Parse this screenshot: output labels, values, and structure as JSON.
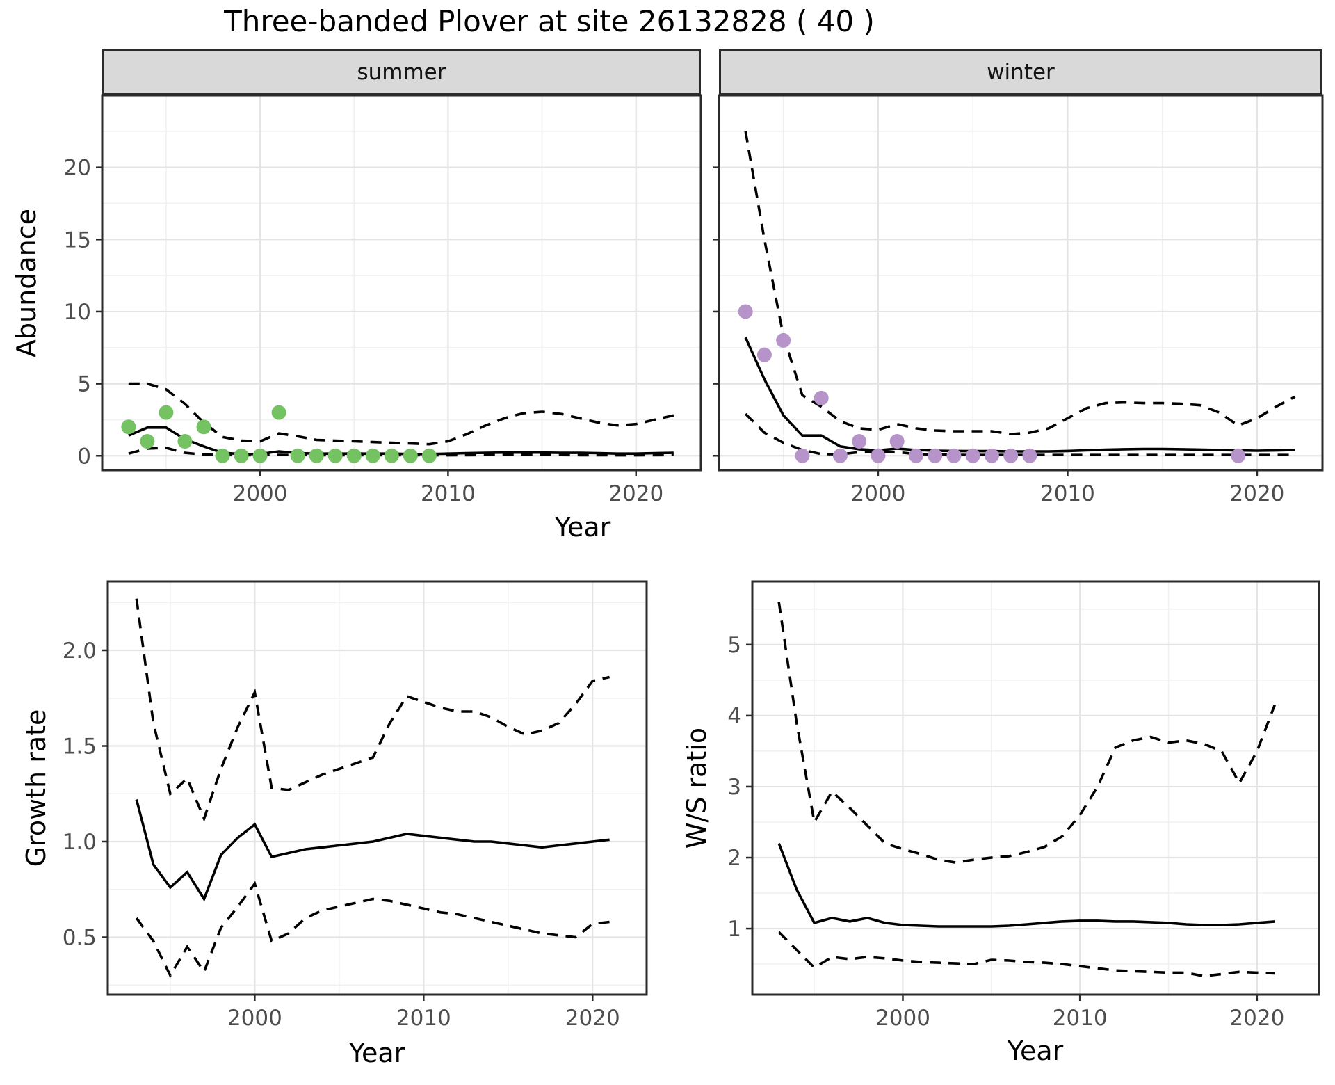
{
  "title": "Three-banded Plover at site 26132828 ( 40 )",
  "style": {
    "summer_point_color": "#74c262",
    "winter_point_color": "#b694ca",
    "line_color": "#000000",
    "grid_major_color": "#e4e4e4",
    "grid_minor_color": "#f0f0f0",
    "panel_border_color": "#2b2b2b",
    "strip_fill": "#d9d9d9",
    "tick_label_color": "#4d4d4d"
  },
  "chart_data": [
    {
      "type": "scatter+line",
      "facet_label": "summer",
      "xlabel": "Year",
      "ylabel": "Abundance",
      "x_ticks": [
        2000,
        2010,
        2020
      ],
      "x_tick_labels": [
        "2000",
        "2010",
        "2020"
      ],
      "x_minor_ticks": [
        1995,
        2005,
        2015
      ],
      "y_ticks": [
        0,
        5,
        10,
        15,
        20
      ],
      "y_tick_labels": [
        "0",
        "5",
        "10",
        "15",
        "20"
      ],
      "y_minor_ticks": [
        2.5,
        7.5,
        12.5,
        17.5,
        22.5
      ],
      "xlim": [
        1991.6,
        2023.45
      ],
      "ylim": [
        -1.0,
        25.0
      ],
      "point_color": "#74c262",
      "points": [
        [
          1993,
          2
        ],
        [
          1994,
          1
        ],
        [
          1995,
          3
        ],
        [
          1996,
          1
        ],
        [
          1997,
          2
        ],
        [
          1998,
          0
        ],
        [
          1999,
          0
        ],
        [
          2000,
          0
        ],
        [
          2001,
          3
        ],
        [
          2002,
          0
        ],
        [
          2003,
          0
        ],
        [
          2004,
          0
        ],
        [
          2005,
          0
        ],
        [
          2006,
          0
        ],
        [
          2007,
          0
        ],
        [
          2008,
          0
        ],
        [
          2009,
          0
        ]
      ],
      "series_start_year": 1993,
      "series": [
        {
          "name": "fit",
          "style": "solid",
          "values": [
            1.4,
            1.95,
            1.95,
            1.15,
            0.65,
            0.2,
            0.12,
            0.12,
            0.3,
            0.18,
            0.15,
            0.15,
            0.15,
            0.15,
            0.15,
            0.12,
            0.12,
            0.15,
            0.18,
            0.2,
            0.22,
            0.22,
            0.22,
            0.2,
            0.2,
            0.18,
            0.15,
            0.15,
            0.18,
            0.2
          ]
        },
        {
          "name": "upper_ci",
          "style": "dashed",
          "values": [
            5.0,
            5.0,
            4.6,
            3.6,
            2.3,
            1.3,
            1.05,
            1.0,
            1.55,
            1.35,
            1.1,
            1.05,
            1.0,
            0.95,
            0.9,
            0.85,
            0.8,
            1.0,
            1.5,
            2.1,
            2.6,
            2.95,
            3.05,
            2.9,
            2.6,
            2.3,
            2.1,
            2.2,
            2.5,
            2.8
          ]
        },
        {
          "name": "lower_ci",
          "style": "dashed",
          "values": [
            0.15,
            0.5,
            0.55,
            0.2,
            0.08,
            0.05,
            0.04,
            0.04,
            0.06,
            0.05,
            0.04,
            0.04,
            0.04,
            0.04,
            0.04,
            0.04,
            0.03,
            0.03,
            0.04,
            0.05,
            0.05,
            0.05,
            0.05,
            0.05,
            0.04,
            0.04,
            0.03,
            0.03,
            0.04,
            0.05
          ]
        }
      ]
    },
    {
      "type": "scatter+line",
      "facet_label": "winter",
      "xlabel": "Year",
      "ylabel": "Abundance",
      "x_ticks": [
        2000,
        2010,
        2020
      ],
      "x_tick_labels": [
        "2000",
        "2010",
        "2020"
      ],
      "x_minor_ticks": [
        1995,
        2005,
        2015
      ],
      "y_ticks": [
        0,
        5,
        10,
        15,
        20
      ],
      "y_tick_labels": [
        "0",
        "5",
        "10",
        "15",
        "20"
      ],
      "y_minor_ticks": [
        2.5,
        7.5,
        12.5,
        17.5,
        22.5
      ],
      "xlim": [
        1991.6,
        2023.45
      ],
      "ylim": [
        -1.0,
        25.0
      ],
      "point_color": "#b694ca",
      "points": [
        [
          1993,
          10
        ],
        [
          1994,
          7
        ],
        [
          1995,
          8
        ],
        [
          1996,
          0
        ],
        [
          1997,
          4
        ],
        [
          1998,
          0
        ],
        [
          1999,
          1
        ],
        [
          2000,
          0
        ],
        [
          2001,
          1
        ],
        [
          2002,
          0
        ],
        [
          2003,
          0
        ],
        [
          2004,
          0
        ],
        [
          2005,
          0
        ],
        [
          2006,
          0
        ],
        [
          2007,
          0
        ],
        [
          2008,
          0
        ],
        [
          2019,
          0
        ]
      ],
      "series_start_year": 1993,
      "series": [
        {
          "name": "fit",
          "style": "solid",
          "values": [
            8.2,
            5.3,
            2.8,
            1.4,
            1.4,
            0.65,
            0.45,
            0.38,
            0.5,
            0.4,
            0.35,
            0.33,
            0.32,
            0.32,
            0.3,
            0.3,
            0.3,
            0.33,
            0.38,
            0.42,
            0.45,
            0.47,
            0.47,
            0.45,
            0.43,
            0.4,
            0.37,
            0.35,
            0.37,
            0.4
          ]
        },
        {
          "name": "upper_ci",
          "style": "dashed",
          "values": [
            22.5,
            15.0,
            8.3,
            4.2,
            3.4,
            2.4,
            1.9,
            1.8,
            2.2,
            1.9,
            1.75,
            1.7,
            1.7,
            1.7,
            1.5,
            1.6,
            1.9,
            2.6,
            3.3,
            3.65,
            3.7,
            3.65,
            3.65,
            3.6,
            3.5,
            3.0,
            2.1,
            2.6,
            3.4,
            4.1
          ]
        },
        {
          "name": "lower_ci",
          "style": "dashed",
          "values": [
            2.9,
            1.6,
            0.9,
            0.4,
            0.12,
            0.1,
            0.25,
            0.3,
            0.25,
            0.12,
            0.08,
            0.06,
            0.05,
            0.05,
            0.05,
            0.05,
            0.05,
            0.05,
            0.05,
            0.05,
            0.05,
            0.05,
            0.05,
            0.05,
            0.05,
            0.05,
            0.05,
            0.05,
            0.05,
            0.05
          ]
        }
      ]
    },
    {
      "type": "line",
      "xlabel": "Year",
      "ylabel": "Growth rate",
      "x_ticks": [
        2000,
        2010,
        2020
      ],
      "x_tick_labels": [
        "2000",
        "2010",
        "2020"
      ],
      "x_minor_ticks": [
        1995,
        2005,
        2015
      ],
      "y_ticks": [
        0.5,
        1.0,
        1.5,
        2.0
      ],
      "y_tick_labels": [
        "0.5",
        "1.0",
        "1.5",
        "2.0"
      ],
      "y_minor_ticks": [
        0.25,
        0.75,
        1.25,
        1.75,
        2.25
      ],
      "xlim": [
        1991.3,
        2023.2
      ],
      "ylim": [
        0.2,
        2.36
      ],
      "series_start_year": 1993,
      "series": [
        {
          "name": "fit",
          "style": "solid",
          "values": [
            1.22,
            0.88,
            0.76,
            0.84,
            0.7,
            0.93,
            1.02,
            1.09,
            0.92,
            0.94,
            0.96,
            0.97,
            0.98,
            0.99,
            1.0,
            1.02,
            1.04,
            1.03,
            1.02,
            1.01,
            1.0,
            1.0,
            0.99,
            0.98,
            0.97,
            0.98,
            0.99,
            1.0,
            1.01
          ]
        },
        {
          "name": "upper_ci",
          "style": "dashed",
          "values": [
            2.27,
            1.62,
            1.25,
            1.33,
            1.12,
            1.38,
            1.6,
            1.78,
            1.28,
            1.27,
            1.31,
            1.35,
            1.38,
            1.41,
            1.44,
            1.62,
            1.76,
            1.73,
            1.7,
            1.68,
            1.68,
            1.65,
            1.6,
            1.56,
            1.58,
            1.62,
            1.72,
            1.84,
            1.86
          ]
        },
        {
          "name": "lower_ci",
          "style": "dashed",
          "values": [
            0.6,
            0.48,
            0.3,
            0.45,
            0.32,
            0.55,
            0.66,
            0.78,
            0.48,
            0.52,
            0.6,
            0.64,
            0.66,
            0.68,
            0.7,
            0.69,
            0.67,
            0.65,
            0.63,
            0.62,
            0.6,
            0.58,
            0.56,
            0.54,
            0.52,
            0.51,
            0.5,
            0.57,
            0.58
          ]
        }
      ]
    },
    {
      "type": "line",
      "xlabel": "Year",
      "ylabel": "W/S ratio",
      "x_ticks": [
        2000,
        2010,
        2020
      ],
      "x_tick_labels": [
        "2000",
        "2010",
        "2020"
      ],
      "x_minor_ticks": [
        1995,
        2005,
        2015
      ],
      "y_ticks": [
        1,
        2,
        3,
        4,
        5
      ],
      "y_tick_labels": [
        "1",
        "2",
        "3",
        "4",
        "5"
      ],
      "y_minor_ticks": [
        0.5,
        1.5,
        2.5,
        3.5,
        4.5,
        5.5
      ],
      "xlim": [
        1991.5,
        2023.5
      ],
      "ylim": [
        0.07,
        5.89
      ],
      "series_start_year": 1993,
      "series": [
        {
          "name": "fit",
          "style": "solid",
          "values": [
            2.2,
            1.55,
            1.08,
            1.15,
            1.1,
            1.15,
            1.08,
            1.05,
            1.04,
            1.03,
            1.03,
            1.03,
            1.03,
            1.04,
            1.06,
            1.08,
            1.1,
            1.11,
            1.11,
            1.1,
            1.1,
            1.09,
            1.08,
            1.06,
            1.05,
            1.05,
            1.06,
            1.08,
            1.1
          ]
        },
        {
          "name": "upper_ci",
          "style": "dashed",
          "values": [
            5.6,
            3.9,
            2.5,
            2.93,
            2.7,
            2.45,
            2.2,
            2.12,
            2.05,
            1.97,
            1.93,
            1.97,
            2.0,
            2.02,
            2.08,
            2.15,
            2.3,
            2.6,
            3.0,
            3.55,
            3.65,
            3.7,
            3.62,
            3.65,
            3.6,
            3.5,
            3.05,
            3.5,
            4.15
          ]
        },
        {
          "name": "lower_ci",
          "style": "dashed",
          "values": [
            0.95,
            0.7,
            0.45,
            0.6,
            0.57,
            0.6,
            0.58,
            0.55,
            0.53,
            0.52,
            0.51,
            0.5,
            0.56,
            0.55,
            0.53,
            0.52,
            0.5,
            0.47,
            0.44,
            0.41,
            0.4,
            0.39,
            0.38,
            0.38,
            0.33,
            0.36,
            0.39,
            0.38,
            0.37
          ]
        }
      ]
    }
  ]
}
